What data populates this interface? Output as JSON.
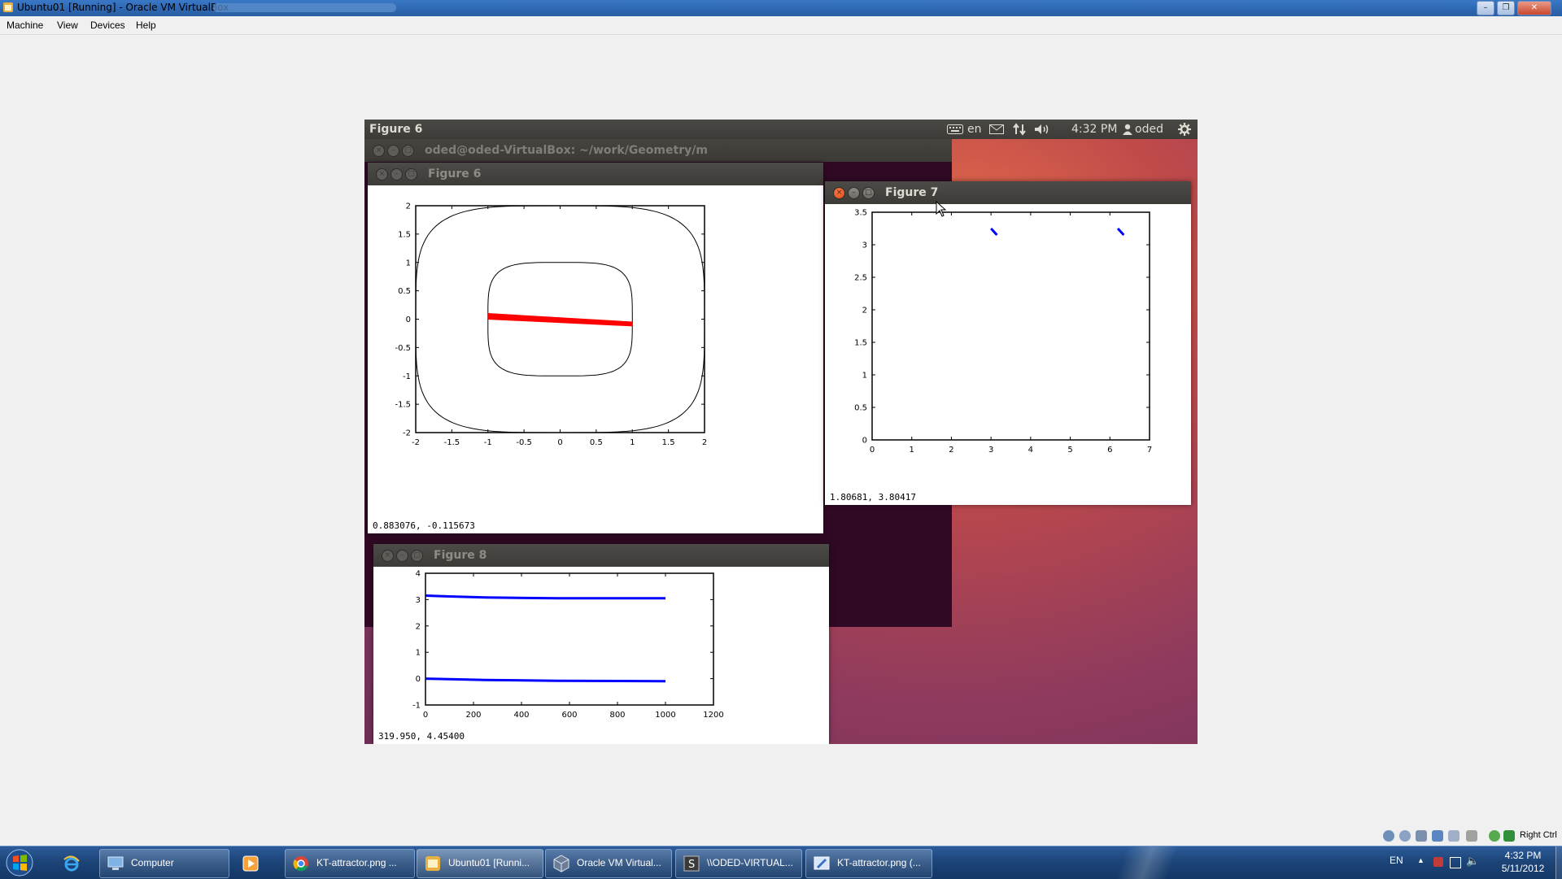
{
  "host": {
    "title": "Ubuntu01 [Running] - Oracle VM VirtualBox",
    "menu": [
      "Machine",
      "View",
      "Devices",
      "Help"
    ],
    "controls": {
      "minimize": "–",
      "restore": "❐",
      "close": "✕"
    }
  },
  "guest": {
    "panel": {
      "active_title": "Figure 6",
      "keyboard": "en",
      "time": "4:32 PM",
      "user": "oded"
    },
    "terminal": {
      "title": "oded@oded-VirtualBox: ~/work/Geometry/m"
    },
    "figure6": {
      "title": "Figure 6",
      "coords": "0.883076, -0.115673",
      "x_ticks": [
        "-2",
        "-1.5",
        "-1",
        "-0.5",
        "0",
        "0.5",
        "1",
        "1.5",
        "2"
      ],
      "y_ticks": [
        "2",
        "1.5",
        "1",
        "0.5",
        "0",
        "-0.5",
        "-1",
        "-1.5",
        "-2"
      ]
    },
    "figure7": {
      "title": "Figure 7",
      "coords": "1.80681,  3.80417",
      "x_ticks": [
        "0",
        "1",
        "2",
        "3",
        "4",
        "5",
        "6",
        "7"
      ],
      "y_ticks": [
        "3.5",
        "3",
        "2.5",
        "2",
        "1.5",
        "1",
        "0.5",
        "0"
      ]
    },
    "figure8": {
      "title": "Figure 8",
      "coords": "319.950,  4.45400",
      "x_ticks": [
        "0",
        "200",
        "400",
        "600",
        "800",
        "1000",
        "1200"
      ],
      "y_ticks": [
        "4",
        "3",
        "2",
        "1",
        "0",
        "-1"
      ]
    }
  },
  "chart_data": [
    {
      "type": "line",
      "name": "figure6",
      "xlim": [
        -2,
        2
      ],
      "ylim": [
        -2,
        2
      ],
      "grid": false,
      "series": [
        {
          "shape": "superellipse",
          "cx": 0,
          "cy": 0,
          "rx": 2,
          "ry": 2,
          "color": "#000000"
        },
        {
          "shape": "superellipse",
          "cx": 0,
          "cy": 0,
          "rx": 1,
          "ry": 1,
          "color": "#000000"
        },
        {
          "shape": "wedge",
          "x": [
            -1,
            1
          ],
          "y_top": [
            0.1,
            -0.05
          ],
          "y_bottom": [
            0.0,
            -0.12
          ],
          "color": "#ff0000"
        }
      ]
    },
    {
      "type": "scatter",
      "name": "figure7",
      "xlim": [
        0,
        7
      ],
      "ylim": [
        0,
        3.5
      ],
      "grid": false,
      "series": [
        {
          "x": [
            3.0,
            3.15
          ],
          "y": [
            3.25,
            3.15
          ],
          "color": "#0000ff"
        },
        {
          "x": [
            6.2,
            6.35
          ],
          "y": [
            3.25,
            3.15
          ],
          "color": "#0000ff"
        }
      ]
    },
    {
      "type": "line",
      "name": "figure8",
      "xlim": [
        0,
        1200
      ],
      "ylim": [
        -1,
        4
      ],
      "grid": false,
      "series": [
        {
          "x": [
            0,
            100,
            250,
            550,
            1000
          ],
          "y": [
            3.15,
            3.12,
            3.08,
            3.05,
            3.05
          ],
          "color": "#0000ff"
        },
        {
          "x": [
            0,
            100,
            250,
            550,
            1000
          ],
          "y": [
            0.0,
            -0.02,
            -0.05,
            -0.08,
            -0.1
          ],
          "color": "#0000ff"
        }
      ]
    }
  ],
  "taskbar": {
    "items": [
      {
        "label": "",
        "icon": "ie-icon"
      },
      {
        "label": "Computer",
        "icon": "computer-icon"
      },
      {
        "label": "",
        "icon": "media-player-icon"
      },
      {
        "label": "KT-attractor.png ...",
        "icon": "chrome-icon"
      },
      {
        "label": "Ubuntu01 [Runni...",
        "icon": "virtualbox-vm-icon"
      },
      {
        "label": "Oracle VM Virtual...",
        "icon": "virtualbox-icon"
      },
      {
        "label": "\\\\ODED-VIRTUAL...",
        "icon": "shell-icon"
      },
      {
        "label": "KT-attractor.png (...",
        "icon": "paint-icon"
      }
    ],
    "tray": {
      "lang": "EN",
      "time": "4:32 PM",
      "date": "5/11/2012"
    },
    "vbox_status_label": "Right Ctrl"
  }
}
